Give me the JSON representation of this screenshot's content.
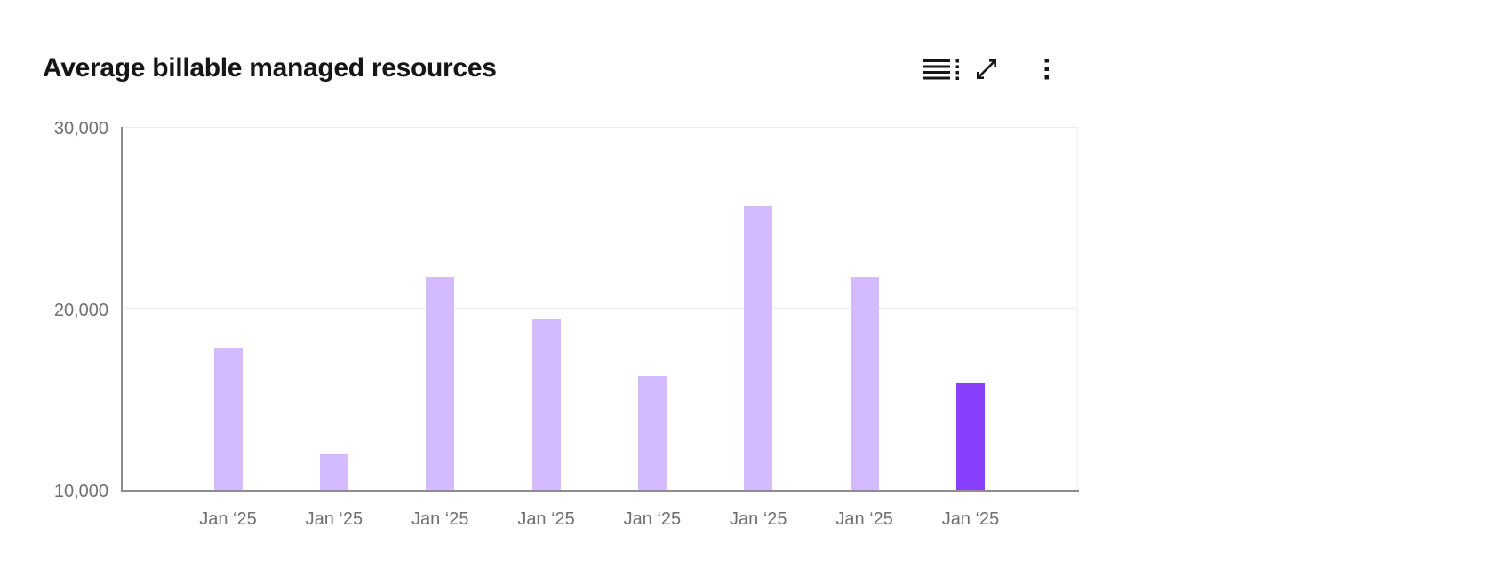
{
  "widget": {
    "title": "Average billable managed resources",
    "toolbar": {
      "icons": [
        "data-table-icon",
        "expand-icon",
        "overflow-menu-icon"
      ]
    }
  },
  "chart_data": {
    "type": "bar",
    "title": "Average billable managed resources",
    "categories": [
      "Jan ‘25",
      "Jan ‘25",
      "Jan ‘25",
      "Jan ‘25",
      "Jan ‘25",
      "Jan ‘25",
      "Jan ‘25",
      "Jan ‘25"
    ],
    "values": [
      17800,
      11950,
      21750,
      19400,
      16250,
      25650,
      21750,
      15880
    ],
    "highlight_index": 7,
    "xlabel": "",
    "ylabel": "",
    "ylim": [
      10000,
      30000
    ],
    "y_ticks": [
      {
        "value": 30000,
        "label": "30,000"
      },
      {
        "value": 20000,
        "label": "20,000"
      },
      {
        "value": 10000,
        "label": "10,000"
      }
    ],
    "grid": "horizontal",
    "legend": "none",
    "colors": {
      "bar": "#d4bbff",
      "highlight": "#8a3ffc",
      "axis": "#8d8d8d",
      "grid": "#ececec",
      "plot_right_edge": "#f2f2f2",
      "tick_label": "#6f6f6f",
      "title": "#161616",
      "icon": "#161616",
      "background": "#ffffff"
    }
  }
}
